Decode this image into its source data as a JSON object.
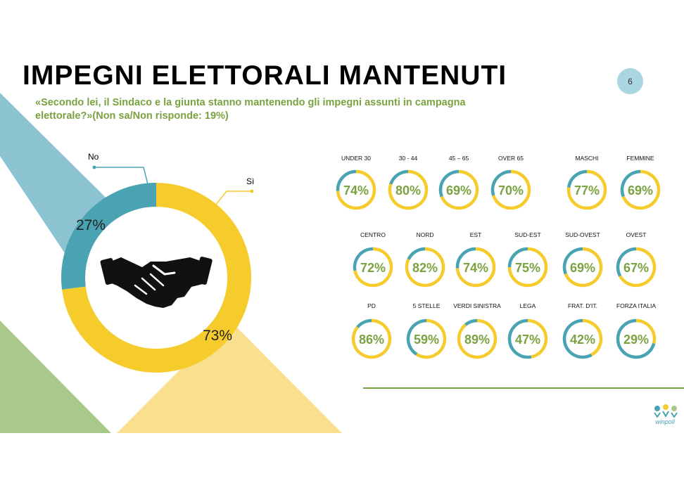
{
  "title": "IMPEGNI ELETTORALI MANTENUTI",
  "subtitle": "«Secondo lei, il Sindaco e la giunta stanno mantenendo gli impegni assunti in campagna elettorale?»(Non sa/Non risponde:  19%)",
  "page_number": "6",
  "colors": {
    "yes": "#f5cc2c",
    "no": "#4aa3b3",
    "green_text": "#7aa240",
    "band_blue": "#8cc3d1",
    "band_yellow": "#f9e08f",
    "band_green": "#a9c98a",
    "rule": "#7aa240"
  },
  "icons": {
    "center": "handshake-icon",
    "logo": "winpoll-logo"
  },
  "logo_text": "winpoll",
  "chart_data": [
    {
      "type": "pie",
      "variant": "donut",
      "categories": [
        "No",
        "Sì"
      ],
      "values": [
        27,
        73
      ],
      "value_labels": [
        "27%",
        "73%"
      ],
      "unit": "%"
    },
    {
      "type": "pie",
      "variant": "small-multiples-donut",
      "groups": [
        {
          "label": "UNDER 30",
          "value": 74
        },
        {
          "label": "30 - 44",
          "value": 80
        },
        {
          "label": "45 – 65",
          "value": 69
        },
        {
          "label": "OVER 65",
          "value": 70
        },
        {
          "label": "MASCHI",
          "value": 77
        },
        {
          "label": "FEMMINE",
          "value": 69
        },
        {
          "label": "CENTRO",
          "value": 72
        },
        {
          "label": "NORD",
          "value": 82
        },
        {
          "label": "EST",
          "value": 74
        },
        {
          "label": "SUD-EST",
          "value": 75
        },
        {
          "label": "SUD-OVEST",
          "value": 69
        },
        {
          "label": "OVEST",
          "value": 67
        },
        {
          "label": "PD",
          "value": 86
        },
        {
          "label": "5 STELLE",
          "value": 59
        },
        {
          "label": "VERDI SINISTRA",
          "value": 89
        },
        {
          "label": "LEGA",
          "value": 47
        },
        {
          "label": "FRAT. D'IT.",
          "value": 42
        },
        {
          "label": "FORZA ITALIA",
          "value": 29
        }
      ],
      "unit": "%"
    }
  ]
}
